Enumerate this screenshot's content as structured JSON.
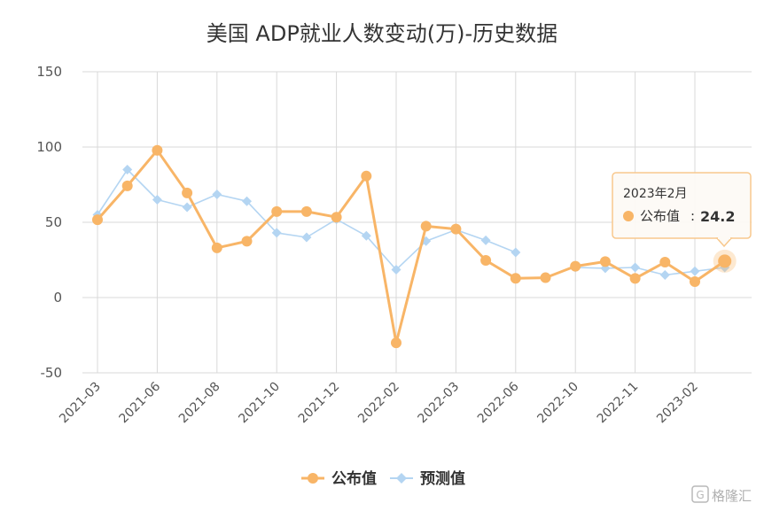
{
  "chart_data": {
    "type": "line",
    "title": "美国 ADP就业人数变动(万)-历史数据",
    "xlabel": "",
    "ylabel": "",
    "ylim": [
      -50,
      150
    ],
    "yticks": [
      -50,
      0,
      50,
      100,
      150
    ],
    "x_tick_labels": [
      "2021-03",
      "2021-06",
      "2021-08",
      "2021-10",
      "2021-12",
      "2022-02",
      "2022-03",
      "2022-06",
      "2022-10",
      "2022-11",
      "2023-02"
    ],
    "grid": true,
    "legend": "bottom-center",
    "series": [
      {
        "name": "公布值",
        "color": "#f8b567",
        "marker": "circle",
        "values": [
          51.7,
          74.2,
          97.8,
          69.5,
          33.0,
          37.4,
          57.1,
          57.1,
          53.4,
          80.7,
          -30.1,
          47.4,
          45.5,
          24.7,
          12.8,
          13.2,
          20.8,
          23.9,
          12.7,
          23.5,
          10.6,
          24.2
        ]
      },
      {
        "name": "预测值",
        "color": "#b4d5f2",
        "marker": "diamond",
        "values": [
          55.0,
          85.0,
          65.0,
          60.0,
          68.5,
          64.0,
          43.0,
          40.0,
          52.0,
          41.0,
          18.5,
          37.5,
          45.0,
          38.0,
          30.0,
          null,
          20.0,
          19.5,
          20.0,
          15.0,
          17.5,
          20.0
        ]
      }
    ],
    "tooltip": {
      "date": "2023年2月",
      "series_name": "公布值",
      "value_text": "24.2",
      "point_index": 21
    }
  },
  "watermark": {
    "text": "格隆汇",
    "icon": "glh-logo-icon"
  }
}
